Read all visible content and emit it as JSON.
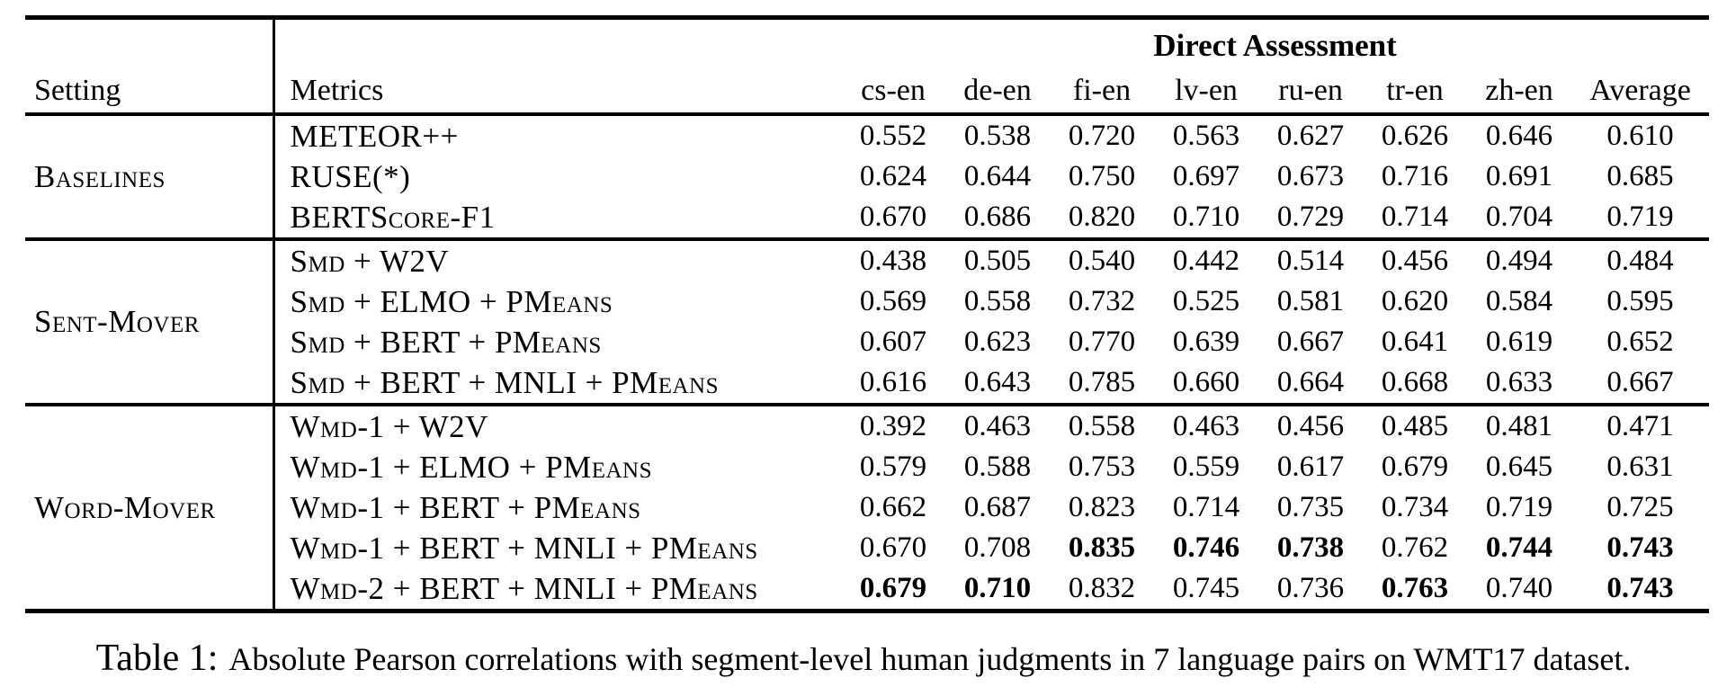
{
  "table": {
    "span_header": "Direct Assessment",
    "col_headers": {
      "setting": "Setting",
      "metrics": "Metrics"
    },
    "language_columns": [
      "cs-en",
      "de-en",
      "fi-en",
      "lv-en",
      "ru-en",
      "tr-en",
      "zh-en",
      "Average"
    ],
    "groups": [
      {
        "setting": "Baselines",
        "rows": [
          {
            "metric": "METEOR++",
            "values": [
              "0.552",
              "0.538",
              "0.720",
              "0.563",
              "0.627",
              "0.626",
              "0.646",
              "0.610"
            ],
            "bold": []
          },
          {
            "metric": "RUSE(*)",
            "values": [
              "0.624",
              "0.644",
              "0.750",
              "0.697",
              "0.673",
              "0.716",
              "0.691",
              "0.685"
            ],
            "bold": []
          },
          {
            "metric": "BERTScore-F1",
            "values": [
              "0.670",
              "0.686",
              "0.820",
              "0.710",
              "0.729",
              "0.714",
              "0.704",
              "0.719"
            ],
            "bold": []
          }
        ]
      },
      {
        "setting": "Sent-Mover",
        "rows": [
          {
            "metric": "Smd + W2V",
            "values": [
              "0.438",
              "0.505",
              "0.540",
              "0.442",
              "0.514",
              "0.456",
              "0.494",
              "0.484"
            ],
            "bold": []
          },
          {
            "metric": "Smd + ELMO + PMeans",
            "values": [
              "0.569",
              "0.558",
              "0.732",
              "0.525",
              "0.581",
              "0.620",
              "0.584",
              "0.595"
            ],
            "bold": []
          },
          {
            "metric": "Smd + BERT + PMeans",
            "values": [
              "0.607",
              "0.623",
              "0.770",
              "0.639",
              "0.667",
              "0.641",
              "0.619",
              "0.652"
            ],
            "bold": []
          },
          {
            "metric": "Smd + BERT + MNLI + PMeans",
            "values": [
              "0.616",
              "0.643",
              "0.785",
              "0.660",
              "0.664",
              "0.668",
              "0.633",
              "0.667"
            ],
            "bold": []
          }
        ]
      },
      {
        "setting": "Word-Mover",
        "rows": [
          {
            "metric": "Wmd-1 + W2V",
            "values": [
              "0.392",
              "0.463",
              "0.558",
              "0.463",
              "0.456",
              "0.485",
              "0.481",
              "0.471"
            ],
            "bold": []
          },
          {
            "metric": "Wmd-1 + ELMO + PMeans",
            "values": [
              "0.579",
              "0.588",
              "0.753",
              "0.559",
              "0.617",
              "0.679",
              "0.645",
              "0.631"
            ],
            "bold": []
          },
          {
            "metric": "Wmd-1 + BERT + PMeans",
            "values": [
              "0.662",
              "0.687",
              "0.823",
              "0.714",
              "0.735",
              "0.734",
              "0.719",
              "0.725"
            ],
            "bold": []
          },
          {
            "metric": "Wmd-1 + BERT + MNLI + PMeans",
            "values": [
              "0.670",
              "0.708",
              "0.835",
              "0.746",
              "0.738",
              "0.762",
              "0.744",
              "0.743"
            ],
            "bold": [
              2,
              3,
              4,
              6,
              7
            ]
          },
          {
            "metric": "Wmd-2 + BERT + MNLI + PMeans",
            "values": [
              "0.679",
              "0.710",
              "0.832",
              "0.745",
              "0.736",
              "0.763",
              "0.740",
              "0.743"
            ],
            "bold": [
              0,
              1,
              5,
              7
            ]
          }
        ]
      }
    ]
  },
  "caption": {
    "label": "Table 1:",
    "text": "Absolute Pearson correlations with segment-level human judgments in 7 language pairs on WMT17 dataset."
  }
}
